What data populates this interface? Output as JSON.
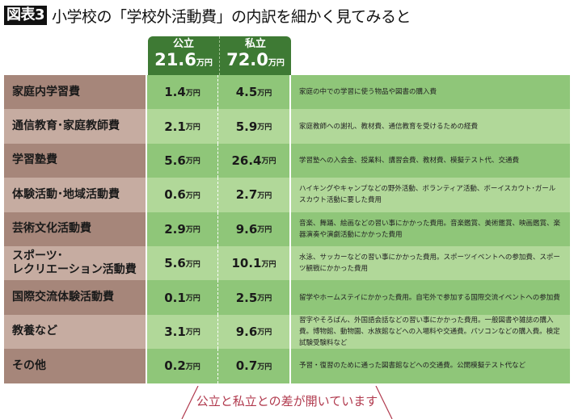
{
  "title": {
    "badge": "図表3",
    "text": "小学校の「学校外活動費」の内訳を細かく見てみると"
  },
  "header": {
    "columns": [
      {
        "name": "公立",
        "total": "21.6",
        "unit": "万円"
      },
      {
        "name": "私立",
        "total": "72.0",
        "unit": "万円"
      }
    ]
  },
  "unit": "万円",
  "rows": [
    {
      "label": "家庭内学習費",
      "public": "1.4",
      "private": "4.5",
      "desc": "家庭の中での学習に使う物品や図書の購入費"
    },
    {
      "label": "通信教育･家庭教師費",
      "public": "2.1",
      "private": "5.9",
      "desc": "家庭教師への謝礼、教材費、通信教育を受けるための経費"
    },
    {
      "label": "学習塾費",
      "public": "5.6",
      "private": "26.4",
      "desc": "学習塾への入会金、授業料、講習会費、教材費、模擬テスト代、交通費"
    },
    {
      "label": "体験活動･地域活動費",
      "public": "0.6",
      "private": "2.7",
      "desc": "ハイキングやキャンプなどの野外活動、ボランティア活動、ボーイスカウト･ガールスカウト活動に要した費用"
    },
    {
      "label": "芸術文化活動費",
      "public": "2.9",
      "private": "9.6",
      "desc": "音楽、舞踊、絵画などの習い事にかかった費用。音楽鑑賞、美術鑑賞、映画鑑賞、楽器演奏や演劇活動にかかった費用"
    },
    {
      "label": "スポーツ･\nレクリエーション活動費",
      "public": "5.6",
      "private": "10.1",
      "desc": "水泳、サッカーなどの習い事にかかった費用。スポーツイベントへの参加費、スポーツ観戦にかかった費用"
    },
    {
      "label": "国際交流体験活動費",
      "public": "0.1",
      "private": "2.5",
      "desc": "留学やホームステイにかかった費用。自宅外で参加する国際交流イベントへの参加費"
    },
    {
      "label": "教養など",
      "public": "3.1",
      "private": "9.6",
      "desc": "習字やそろばん、外国語会話などの習い事にかかった費用。一般図書や雑誌の購入費。博物館、動物園、水族館などへの入場料や交通費。パソコンなどの購入費。検定試験受験料など"
    },
    {
      "label": "その他",
      "public": "0.2",
      "private": "0.7",
      "desc": "予習・復習のために通った図書館などへの交通費。公開模擬テスト代など"
    }
  ],
  "note": "公立と私立との差が開いています",
  "colors": {
    "header": "#3e7a34",
    "label_dark": "#a6867a",
    "label_light": "#c6aca1",
    "green_dark": "#8fc679",
    "green_light": "#b1d899",
    "note": "#b13a4e"
  }
}
